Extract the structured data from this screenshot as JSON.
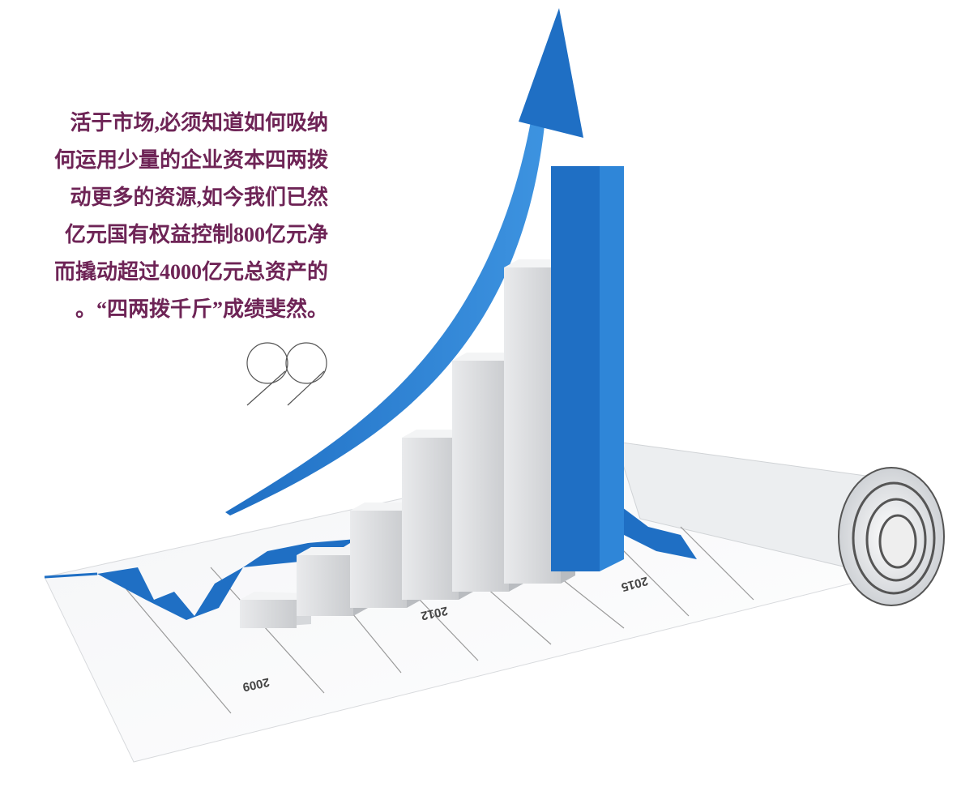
{
  "quote": {
    "lines": [
      "活于市场,必须知道如何吸纳",
      "何运用少量的企业资本四两拨",
      "动更多的资源,如今我们已然",
      "亿元国有权益控制800亿元净",
      "而撬动超过4000亿元总资产的",
      "。“四两拨千斤”成绩斐然。"
    ]
  },
  "illustration": {
    "year_labels": [
      "2009",
      "2012",
      "2015"
    ]
  }
}
